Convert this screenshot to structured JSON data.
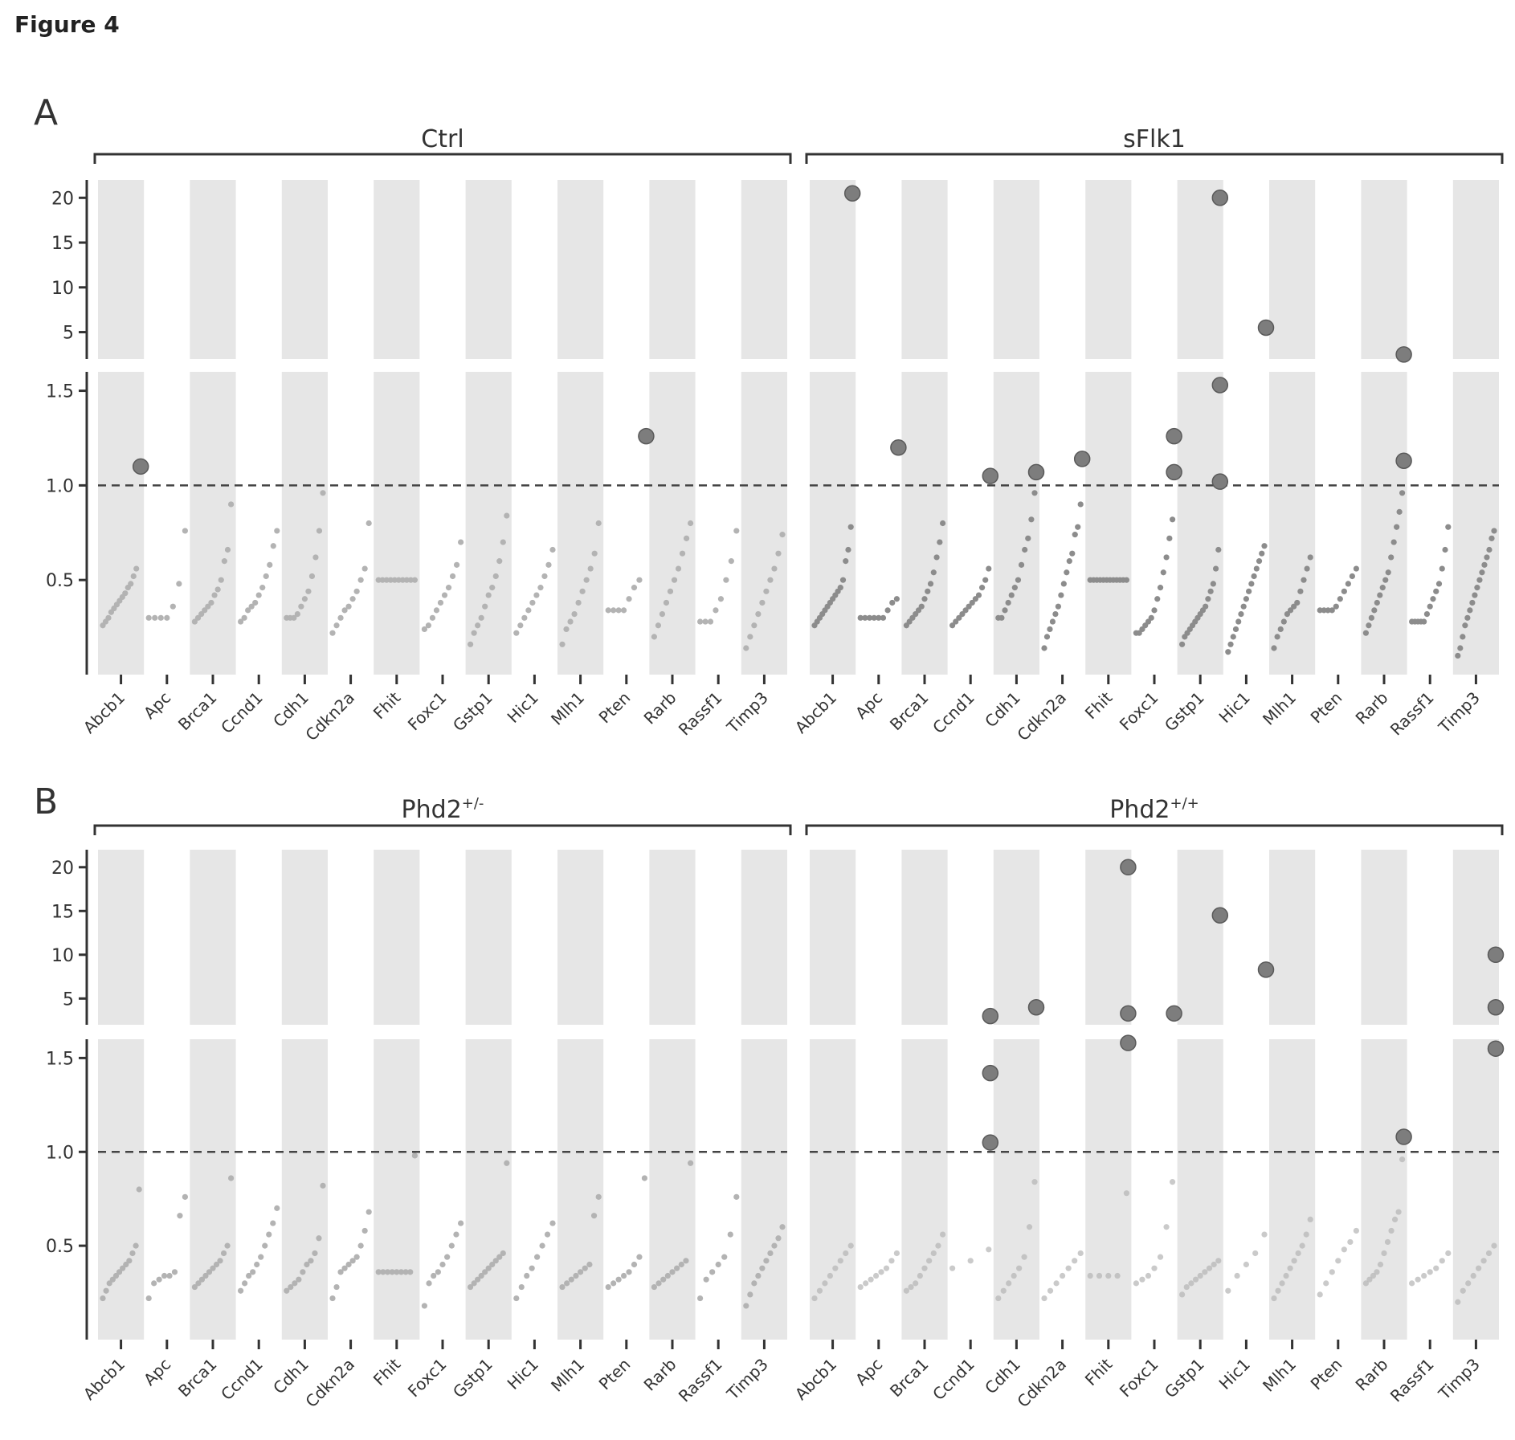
{
  "figure_title": "Figure 4",
  "colors": {
    "band": "#e6e6e6",
    "axis": "#333333",
    "dashed": "#444444",
    "point_small": "#b3b3b3",
    "point_small_dark": "#8c8c8c",
    "point_large": "#7d7d7d"
  },
  "chart_data": {
    "type": "scatter",
    "reference_line": 1.0,
    "genes": [
      "Abcb1",
      "Apc",
      "Brca1",
      "Ccnd1",
      "Cdh1",
      "Cdkn2a",
      "Fhit",
      "Foxc1",
      "Gstp1",
      "Hic1",
      "Mlh1",
      "Pten",
      "Rarb",
      "Rassf1",
      "Timp3"
    ],
    "y_axis": {
      "lower_ticks": [
        0.5,
        1.0,
        1.5
      ],
      "lower_range": [
        0.0,
        1.6
      ],
      "upper_ticks": [
        5,
        10,
        15,
        20
      ],
      "upper_range": [
        2,
        22
      ]
    },
    "panels": [
      {
        "label": "A",
        "groups": [
          {
            "name": "Ctrl",
            "tone": "light",
            "series": {
              "Abcb1": [
                0.26,
                0.28,
                0.3,
                0.33,
                0.35,
                0.37,
                0.39,
                0.41,
                0.43,
                0.46,
                0.48,
                0.52,
                0.56,
                1.1
              ],
              "Apc": [
                0.3,
                0.3,
                0.3,
                0.3,
                0.36,
                0.48,
                0.76
              ],
              "Brca1": [
                0.28,
                0.3,
                0.32,
                0.34,
                0.36,
                0.38,
                0.42,
                0.45,
                0.5,
                0.6,
                0.66,
                0.9
              ],
              "Ccnd1": [
                0.28,
                0.3,
                0.34,
                0.36,
                0.38,
                0.42,
                0.46,
                0.52,
                0.58,
                0.68,
                0.76
              ],
              "Cdh1": [
                0.3,
                0.3,
                0.3,
                0.32,
                0.36,
                0.4,
                0.44,
                0.52,
                0.62,
                0.76,
                0.96
              ],
              "Cdkn2a": [
                0.22,
                0.26,
                0.3,
                0.34,
                0.36,
                0.4,
                0.44,
                0.5,
                0.56,
                0.8
              ],
              "Fhit": [
                0.5,
                0.5,
                0.5,
                0.5,
                0.5,
                0.5,
                0.5,
                0.5,
                0.5,
                0.5
              ],
              "Foxc1": [
                0.24,
                0.26,
                0.3,
                0.34,
                0.38,
                0.42,
                0.46,
                0.52,
                0.58,
                0.7
              ],
              "Gstp1": [
                0.16,
                0.22,
                0.26,
                0.3,
                0.36,
                0.42,
                0.46,
                0.52,
                0.6,
                0.7,
                0.84
              ],
              "Hic1": [
                0.22,
                0.26,
                0.3,
                0.34,
                0.38,
                0.42,
                0.46,
                0.52,
                0.58,
                0.66
              ],
              "Mlh1": [
                0.16,
                0.24,
                0.28,
                0.32,
                0.38,
                0.44,
                0.5,
                0.56,
                0.64,
                0.8
              ],
              "Pten": [
                0.34,
                0.34,
                0.34,
                0.34,
                0.4,
                0.46,
                0.5,
                1.26
              ],
              "Rarb": [
                0.2,
                0.26,
                0.32,
                0.38,
                0.44,
                0.5,
                0.56,
                0.64,
                0.72,
                0.8
              ],
              "Rassf1": [
                0.28,
                0.28,
                0.28,
                0.34,
                0.4,
                0.5,
                0.6,
                0.76
              ],
              "Timp3": [
                0.14,
                0.2,
                0.26,
                0.32,
                0.38,
                0.44,
                0.5,
                0.56,
                0.64,
                0.74
              ]
            },
            "outliers": [
              {
                "gene": "Abcb1",
                "value": 1.1
              },
              {
                "gene": "Pten",
                "value": 1.26
              }
            ]
          },
          {
            "name": "sFlk1",
            "tone": "dark",
            "series": {
              "Abcb1": [
                0.26,
                0.28,
                0.3,
                0.32,
                0.34,
                0.36,
                0.38,
                0.4,
                0.42,
                0.44,
                0.46,
                0.5,
                0.6,
                0.66,
                0.78
              ],
              "Apc": [
                0.3,
                0.3,
                0.3,
                0.3,
                0.3,
                0.3,
                0.34,
                0.38,
                0.4
              ],
              "Brca1": [
                0.26,
                0.28,
                0.3,
                0.32,
                0.34,
                0.36,
                0.4,
                0.44,
                0.48,
                0.54,
                0.62,
                0.7,
                0.8
              ],
              "Ccnd1": [
                0.26,
                0.28,
                0.3,
                0.32,
                0.34,
                0.36,
                0.38,
                0.4,
                0.42,
                0.46,
                0.5,
                0.56
              ],
              "Cdh1": [
                0.3,
                0.3,
                0.34,
                0.38,
                0.42,
                0.46,
                0.5,
                0.58,
                0.66,
                0.72,
                0.82,
                0.96
              ],
              "Cdkn2a": [
                0.14,
                0.2,
                0.24,
                0.28,
                0.32,
                0.36,
                0.42,
                0.48,
                0.54,
                0.6,
                0.64,
                0.74,
                0.78,
                0.9
              ],
              "Fhit": [
                0.5,
                0.5,
                0.5,
                0.5,
                0.5,
                0.5,
                0.5,
                0.5,
                0.5,
                0.5,
                0.5,
                0.5
              ],
              "Foxc1": [
                0.22,
                0.22,
                0.24,
                0.26,
                0.28,
                0.3,
                0.34,
                0.4,
                0.46,
                0.54,
                0.62,
                0.72,
                0.82
              ],
              "Gstp1": [
                0.16,
                0.2,
                0.22,
                0.24,
                0.26,
                0.28,
                0.3,
                0.32,
                0.34,
                0.36,
                0.4,
                0.44,
                0.48,
                0.56,
                0.66
              ],
              "Hic1": [
                0.12,
                0.16,
                0.2,
                0.24,
                0.28,
                0.32,
                0.36,
                0.4,
                0.44,
                0.48,
                0.52,
                0.56,
                0.6,
                0.64,
                0.68
              ],
              "Mlh1": [
                0.14,
                0.2,
                0.24,
                0.28,
                0.32,
                0.34,
                0.36,
                0.38,
                0.44,
                0.5,
                0.56,
                0.62
              ],
              "Pten": [
                0.34,
                0.34,
                0.34,
                0.34,
                0.36,
                0.4,
                0.44,
                0.48,
                0.52,
                0.56
              ],
              "Rarb": [
                0.22,
                0.26,
                0.3,
                0.34,
                0.38,
                0.42,
                0.46,
                0.5,
                0.54,
                0.62,
                0.7,
                0.78,
                0.86,
                0.96
              ],
              "Rassf1": [
                0.28,
                0.28,
                0.28,
                0.28,
                0.28,
                0.32,
                0.36,
                0.4,
                0.44,
                0.48,
                0.56,
                0.66,
                0.78
              ],
              "Timp3": [
                0.1,
                0.14,
                0.2,
                0.26,
                0.3,
                0.34,
                0.38,
                0.42,
                0.46,
                0.5,
                0.54,
                0.58,
                0.62,
                0.66,
                0.72,
                0.76
              ]
            },
            "outliers": [
              {
                "gene": "Abcb1",
                "value": 20.5
              },
              {
                "gene": "Apc",
                "value": 1.2
              },
              {
                "gene": "Ccnd1",
                "value": 1.05
              },
              {
                "gene": "Cdh1",
                "value": 1.07
              },
              {
                "gene": "Cdkn2a",
                "value": 1.14
              },
              {
                "gene": "Foxc1",
                "value": 1.26
              },
              {
                "gene": "Foxc1",
                "value": 1.07
              },
              {
                "gene": "Gstp1",
                "value": 20.0
              },
              {
                "gene": "Gstp1",
                "value": 1.53
              },
              {
                "gene": "Gstp1",
                "value": 1.02
              },
              {
                "gene": "Hic1",
                "value": 5.5
              },
              {
                "gene": "Rarb",
                "value": 2.5
              },
              {
                "gene": "Rarb",
                "value": 1.13
              }
            ]
          }
        ]
      },
      {
        "label": "B",
        "groups": [
          {
            "name": "Phd2",
            "sup": "+/-",
            "tone": "light",
            "series": {
              "Abcb1": [
                0.22,
                0.26,
                0.3,
                0.32,
                0.34,
                0.36,
                0.38,
                0.4,
                0.42,
                0.46,
                0.5,
                0.8
              ],
              "Apc": [
                0.22,
                0.3,
                0.32,
                0.34,
                0.34,
                0.36,
                0.66,
                0.76
              ],
              "Brca1": [
                0.28,
                0.3,
                0.32,
                0.34,
                0.36,
                0.38,
                0.4,
                0.42,
                0.46,
                0.5,
                0.86
              ],
              "Ccnd1": [
                0.26,
                0.3,
                0.34,
                0.36,
                0.4,
                0.44,
                0.5,
                0.56,
                0.62,
                0.7
              ],
              "Cdh1": [
                0.26,
                0.28,
                0.3,
                0.32,
                0.36,
                0.4,
                0.42,
                0.46,
                0.54,
                0.82
              ],
              "Cdkn2a": [
                0.22,
                0.28,
                0.36,
                0.38,
                0.4,
                0.42,
                0.44,
                0.5,
                0.58,
                0.68
              ],
              "Fhit": [
                0.36,
                0.36,
                0.36,
                0.36,
                0.36,
                0.36,
                0.36,
                0.36,
                0.98
              ],
              "Foxc1": [
                0.18,
                0.3,
                0.34,
                0.36,
                0.4,
                0.44,
                0.5,
                0.56,
                0.62
              ],
              "Gstp1": [
                0.28,
                0.3,
                0.32,
                0.34,
                0.36,
                0.38,
                0.4,
                0.42,
                0.44,
                0.46,
                0.94
              ],
              "Hic1": [
                0.22,
                0.28,
                0.34,
                0.38,
                0.44,
                0.5,
                0.56,
                0.62
              ],
              "Mlh1": [
                0.28,
                0.3,
                0.32,
                0.34,
                0.36,
                0.38,
                0.4,
                0.66,
                0.76
              ],
              "Pten": [
                0.28,
                0.3,
                0.32,
                0.34,
                0.36,
                0.4,
                0.44,
                0.86
              ],
              "Rarb": [
                0.28,
                0.3,
                0.32,
                0.34,
                0.36,
                0.38,
                0.4,
                0.42,
                0.94
              ],
              "Rassf1": [
                0.22,
                0.32,
                0.36,
                0.4,
                0.44,
                0.56,
                0.76
              ],
              "Timp3": [
                0.18,
                0.24,
                0.3,
                0.34,
                0.38,
                0.42,
                0.46,
                0.5,
                0.54,
                0.6
              ]
            },
            "outliers": []
          },
          {
            "name": "Phd2",
            "sup": "+/+",
            "tone": "faint",
            "series": {
              "Abcb1": [
                0.22,
                0.26,
                0.3,
                0.34,
                0.38,
                0.42,
                0.46,
                0.5
              ],
              "Apc": [
                0.28,
                0.3,
                0.32,
                0.34,
                0.36,
                0.38,
                0.42,
                0.46
              ],
              "Brca1": [
                0.26,
                0.28,
                0.3,
                0.34,
                0.38,
                0.42,
                0.46,
                0.5,
                0.56
              ],
              "Ccnd1": [
                0.38,
                0.42,
                0.48
              ],
              "Cdh1": [
                0.22,
                0.26,
                0.3,
                0.34,
                0.38,
                0.44,
                0.6,
                0.84
              ],
              "Cdkn2a": [
                0.22,
                0.26,
                0.3,
                0.34,
                0.38,
                0.42,
                0.46
              ],
              "Fhit": [
                0.34,
                0.34,
                0.34,
                0.34,
                0.78
              ],
              "Foxc1": [
                0.3,
                0.32,
                0.34,
                0.38,
                0.44,
                0.6,
                0.84
              ],
              "Gstp1": [
                0.24,
                0.28,
                0.3,
                0.32,
                0.34,
                0.36,
                0.38,
                0.4,
                0.42
              ],
              "Hic1": [
                0.26,
                0.34,
                0.4,
                0.46,
                0.56
              ],
              "Mlh1": [
                0.22,
                0.26,
                0.3,
                0.34,
                0.38,
                0.42,
                0.46,
                0.5,
                0.56,
                0.64
              ],
              "Pten": [
                0.24,
                0.3,
                0.36,
                0.42,
                0.48,
                0.52,
                0.58
              ],
              "Rarb": [
                0.3,
                0.32,
                0.34,
                0.36,
                0.4,
                0.46,
                0.52,
                0.58,
                0.64,
                0.68,
                0.96
              ],
              "Rassf1": [
                0.3,
                0.32,
                0.34,
                0.36,
                0.38,
                0.42,
                0.46
              ],
              "Timp3": [
                0.2,
                0.26,
                0.3,
                0.34,
                0.38,
                0.42,
                0.46,
                0.5
              ]
            },
            "outliers": [
              {
                "gene": "Ccnd1",
                "value": 1.05
              },
              {
                "gene": "Ccnd1",
                "value": 1.42
              },
              {
                "gene": "Ccnd1",
                "value": 3.0
              },
              {
                "gene": "Cdh1",
                "value": 4.0
              },
              {
                "gene": "Fhit",
                "value": 20.0
              },
              {
                "gene": "Fhit",
                "value": 3.3
              },
              {
                "gene": "Fhit",
                "value": 1.58
              },
              {
                "gene": "Foxc1",
                "value": 3.3
              },
              {
                "gene": "Gstp1",
                "value": 14.5
              },
              {
                "gene": "Hic1",
                "value": 8.3
              },
              {
                "gene": "Rarb",
                "value": 1.08
              },
              {
                "gene": "Timp3",
                "value": 10.0
              },
              {
                "gene": "Timp3",
                "value": 4.0
              },
              {
                "gene": "Timp3",
                "value": 1.55
              }
            ]
          }
        ]
      }
    ]
  }
}
